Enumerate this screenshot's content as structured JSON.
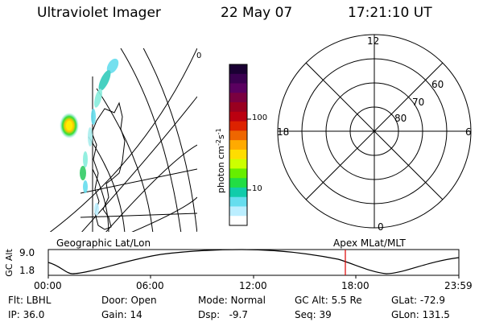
{
  "header": {
    "instrument": "Ultraviolet Imager",
    "date": "22 May 07",
    "time": "17:21:10 UT"
  },
  "colorbar": {
    "label_text": "photon cm",
    "sup1": "-2",
    "label_mid": "s",
    "sup2": "-1",
    "ticks": [
      "100",
      "10"
    ],
    "colors": [
      "#1a0033",
      "#3a0050",
      "#5a0060",
      "#7a0040",
      "#990020",
      "#bb0010",
      "#dd2200",
      "#ee6600",
      "#ffaa00",
      "#ffdd00",
      "#ccff00",
      "#66ee00",
      "#22dd44",
      "#11ccaa",
      "#66ddee",
      "#bbeeff",
      "#ffffff"
    ]
  },
  "geo_panel": {
    "corner_label": "0"
  },
  "polar_panel": {
    "mlt_labels": {
      "top": "12",
      "bottom": "0",
      "left": "18",
      "right": "6"
    },
    "lat_labels": [
      "60",
      "70",
      "80"
    ]
  },
  "altitude_strip": {
    "axis_label": "GC Alt",
    "ymax": "9.0",
    "ymin": "1.8",
    "left_title": "Geographic Lat/Lon",
    "right_title": "Apex MLat/MLT",
    "time_ticks": [
      "00:00",
      "06:00",
      "12:00",
      "18:00",
      "23:59"
    ],
    "marker_color": "#dd0000"
  },
  "info": {
    "row1": [
      "Flt: LBHL",
      "Door: Open",
      "Mode: Normal",
      "GC Alt: 5.5 Re",
      "GLat: -72.9"
    ],
    "row2": [
      "IP: 36.0",
      "Gain: 14",
      "Dsp:   -9.7",
      "Seq: 39",
      "GLon: 131.5"
    ]
  }
}
